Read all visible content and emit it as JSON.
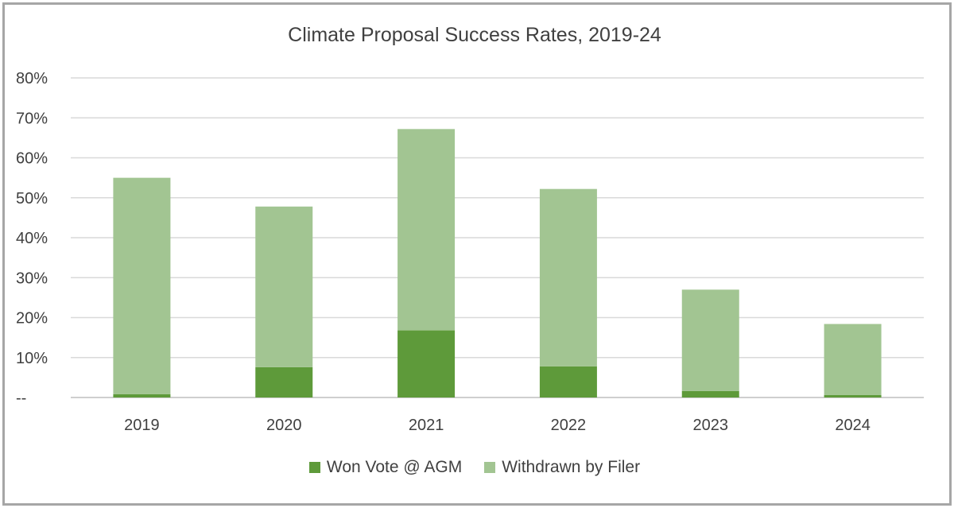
{
  "chart_data": {
    "type": "bar",
    "stacked": true,
    "title": "Climate Proposal Success Rates, 2019-24",
    "categories": [
      "2019",
      "2020",
      "2021",
      "2022",
      "2023",
      "2024"
    ],
    "series": [
      {
        "name": "Won Vote @ AGM",
        "color": "#5e9a3a",
        "values": [
          0.8,
          7.6,
          16.8,
          7.8,
          1.6,
          0.6
        ]
      },
      {
        "name": "Withdrawn by Filer",
        "color": "#a2c592",
        "values": [
          54.2,
          40.2,
          50.4,
          44.4,
          25.4,
          17.8
        ]
      }
    ],
    "ylim": [
      0,
      80
    ],
    "yticks": [
      0,
      10,
      20,
      30,
      40,
      50,
      60,
      70,
      80
    ],
    "ytick_labels": [
      "--",
      "10%",
      "20%",
      "30%",
      "40%",
      "50%",
      "60%",
      "70%",
      "80%"
    ],
    "xlabel": "",
    "ylabel": "",
    "grid": true,
    "legend_position": "bottom"
  }
}
